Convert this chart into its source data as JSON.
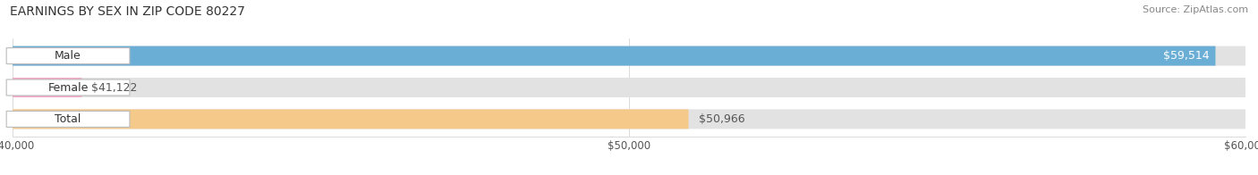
{
  "title": "EARNINGS BY SEX IN ZIP CODE 80227",
  "source": "Source: ZipAtlas.com",
  "categories": [
    "Male",
    "Female",
    "Total"
  ],
  "values": [
    59514,
    41122,
    50966
  ],
  "bar_colors": [
    "#6aaed6",
    "#f4a8c8",
    "#f5c98a"
  ],
  "bar_bg_color": "#e0e0e0",
  "xlim": [
    40000,
    60000
  ],
  "xticks": [
    40000,
    50000,
    60000
  ],
  "xtick_labels": [
    "$40,000",
    "$50,000",
    "$60,000"
  ],
  "value_labels": [
    "$59,514",
    "$41,122",
    "$50,966"
  ],
  "title_fontsize": 10,
  "source_fontsize": 8,
  "label_fontsize": 9,
  "tick_fontsize": 8.5,
  "fig_bg_color": "#ffffff",
  "bar_height": 0.62,
  "pill_label_color": "#555555",
  "value_label_male_color": "#ffffff",
  "value_label_other_color": "#555555"
}
